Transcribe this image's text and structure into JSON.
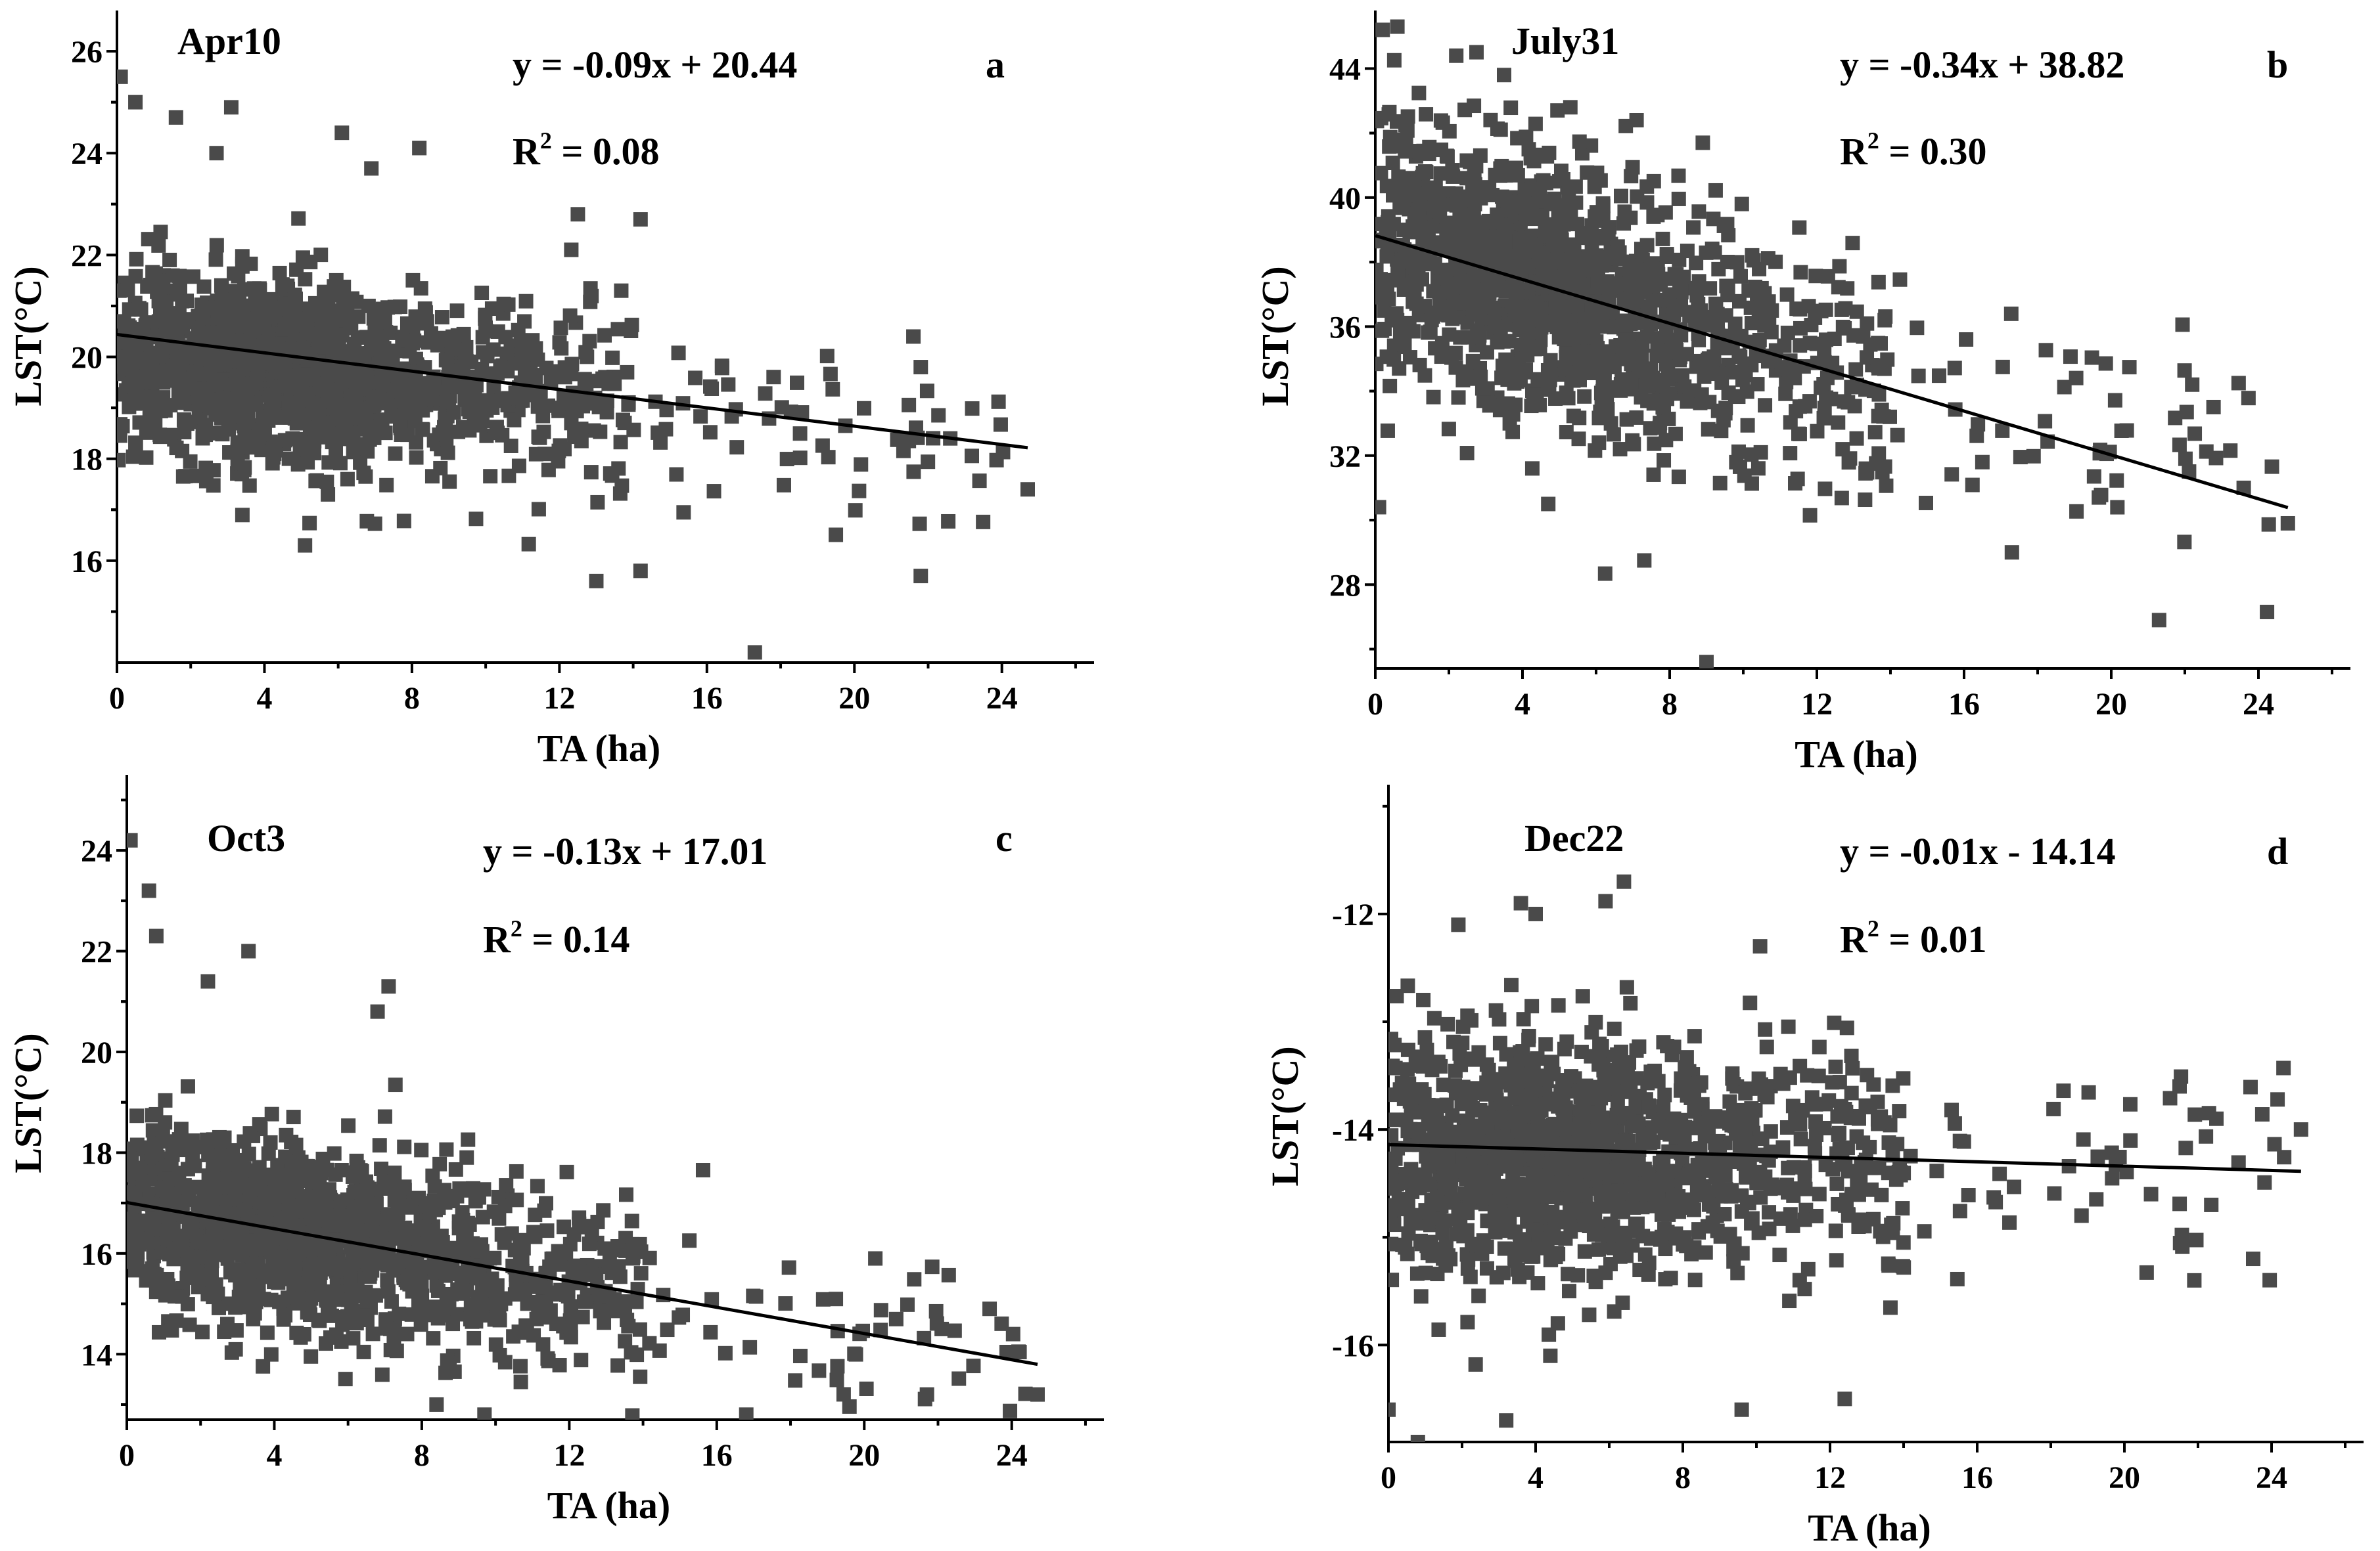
{
  "colors": {
    "points": "#4a4a4a",
    "fit_line": "#000000",
    "axes": "#000000",
    "background": "#ffffff"
  },
  "chart_data": [
    {
      "type": "scatter",
      "title": "Apr10",
      "panel_label": "a",
      "equation": "y = -0.09x + 20.44",
      "r2_prefix": "R",
      "r2_value": " = 0.08",
      "xlabel": "TA (ha)",
      "ylabel": "LST(°C)",
      "xlim": [
        0,
        26.5
      ],
      "ylim": [
        14,
        26.8
      ],
      "xticks": [
        0,
        4,
        8,
        12,
        16,
        20,
        24
      ],
      "yticks": [
        16,
        18,
        20,
        22,
        24,
        26
      ],
      "fit": {
        "slope": -0.09,
        "intercept": 20.44,
        "x_range": [
          0,
          24.7
        ]
      },
      "cloud": {
        "center_x": 4.5,
        "center_y": 19.6,
        "spread_y": 0.9,
        "fan": 0.03
      },
      "outliers": [
        [
          0.1,
          25.5
        ],
        [
          0.5,
          25.0
        ],
        [
          1.6,
          24.7
        ],
        [
          2.7,
          24.0
        ],
        [
          3.1,
          24.9
        ],
        [
          6.1,
          24.4
        ],
        [
          6.9,
          23.7
        ],
        [
          8.2,
          24.1
        ],
        [
          12.5,
          22.8
        ],
        [
          14.2,
          22.7
        ],
        [
          21.6,
          20.4
        ],
        [
          21.8,
          19.8
        ],
        [
          22.6,
          18.4
        ],
        [
          24.7,
          17.4
        ],
        [
          21.8,
          15.7
        ],
        [
          17.3,
          14.2
        ],
        [
          13.0,
          15.6
        ],
        [
          14.2,
          15.8
        ],
        [
          5.1,
          16.3
        ]
      ]
    },
    {
      "type": "scatter",
      "title": "July31",
      "panel_label": "b",
      "equation": "y = -0.34x + 38.82",
      "r2_prefix": "R",
      "r2_value": " = 0.30",
      "xlabel": "TA (ha)",
      "ylabel": "LST(°C)",
      "xlim": [
        0,
        26.5
      ],
      "ylim": [
        25.4,
        45.8
      ],
      "xticks": [
        0,
        4,
        8,
        12,
        16,
        20,
        24
      ],
      "yticks": [
        28,
        32,
        36,
        40,
        44
      ],
      "fit": {
        "slope": -0.34,
        "intercept": 38.82,
        "x_range": [
          0,
          24.8
        ]
      },
      "cloud": {
        "center_x": 4.5,
        "center_y": 37.3,
        "spread_y": 1.9,
        "fan": 0.03
      },
      "outliers": [
        [
          0.2,
          45.2
        ],
        [
          0.6,
          45.3
        ],
        [
          2.2,
          44.4
        ],
        [
          3.5,
          43.8
        ],
        [
          5.3,
          42.8
        ],
        [
          7.1,
          42.4
        ],
        [
          8.9,
          41.7
        ],
        [
          0.1,
          30.4
        ],
        [
          4.7,
          30.5
        ],
        [
          9.0,
          25.6
        ],
        [
          17.3,
          29.0
        ],
        [
          21.3,
          26.9
        ],
        [
          24.8,
          29.9
        ],
        [
          22.2,
          34.2
        ],
        [
          23.6,
          31.0
        ]
      ]
    },
    {
      "type": "scatter",
      "title": "Oct3",
      "panel_label": "c",
      "equation": "y = -0.13x + 17.01",
      "r2_prefix": "R",
      "r2_value": " = 0.14",
      "xlabel": "TA (ha)",
      "ylabel": "LST(°C)",
      "xlim": [
        0,
        26.5
      ],
      "ylim": [
        12.7,
        25.5
      ],
      "xticks": [
        0,
        4,
        8,
        12,
        16,
        20,
        24
      ],
      "yticks": [
        14,
        16,
        18,
        20,
        22,
        24
      ],
      "fit": {
        "slope": -0.13,
        "intercept": 17.01,
        "x_range": [
          0,
          24.7
        ]
      },
      "cloud": {
        "center_x": 4.5,
        "center_y": 16.3,
        "spread_y": 0.9,
        "fan": 0.03
      },
      "outliers": [
        [
          0.1,
          24.2
        ],
        [
          0.6,
          23.2
        ],
        [
          0.8,
          22.3
        ],
        [
          3.3,
          22.0
        ],
        [
          2.2,
          21.4
        ],
        [
          7.1,
          21.3
        ],
        [
          6.8,
          20.8
        ],
        [
          8.4,
          13.0
        ],
        [
          9.7,
          12.8
        ],
        [
          16.8,
          12.8
        ],
        [
          21.7,
          13.2
        ],
        [
          24.7,
          13.2
        ],
        [
          23.4,
          14.9
        ],
        [
          22.1,
          14.5
        ],
        [
          20.3,
          15.9
        ]
      ]
    },
    {
      "type": "scatter",
      "title": "Dec22",
      "panel_label": "d",
      "equation": "y = -0.01x - 14.14",
      "r2_prefix": "R",
      "r2_value": " = 0.01",
      "xlabel": "TA (ha)",
      "ylabel": "LST(°C)",
      "xlim": [
        0,
        26.5
      ],
      "ylim": [
        -16.9,
        -10.8
      ],
      "xticks": [
        0,
        4,
        8,
        12,
        16,
        20,
        24
      ],
      "yticks": [
        -16,
        -14,
        -12
      ],
      "fit": {
        "slope": -0.01,
        "intercept": -14.14,
        "x_range": [
          0,
          24.8
        ]
      },
      "cloud": {
        "center_x": 4.5,
        "center_y": -14.3,
        "spread_y": 0.55,
        "fan": 0.02
      },
      "outliers": [
        [
          6.4,
          -11.7
        ],
        [
          3.6,
          -11.9
        ],
        [
          1.9,
          -12.1
        ],
        [
          4.0,
          -12.0
        ],
        [
          10.1,
          -12.3
        ],
        [
          0.0,
          -16.6
        ],
        [
          0.8,
          -16.9
        ],
        [
          3.2,
          -16.7
        ],
        [
          9.6,
          -16.6
        ],
        [
          12.4,
          -16.5
        ],
        [
          4.4,
          -16.1
        ],
        [
          21.5,
          -13.6
        ],
        [
          22.5,
          -13.9
        ],
        [
          24.8,
          -14.0
        ],
        [
          23.5,
          -15.2
        ],
        [
          21.9,
          -15.4
        ]
      ]
    }
  ]
}
